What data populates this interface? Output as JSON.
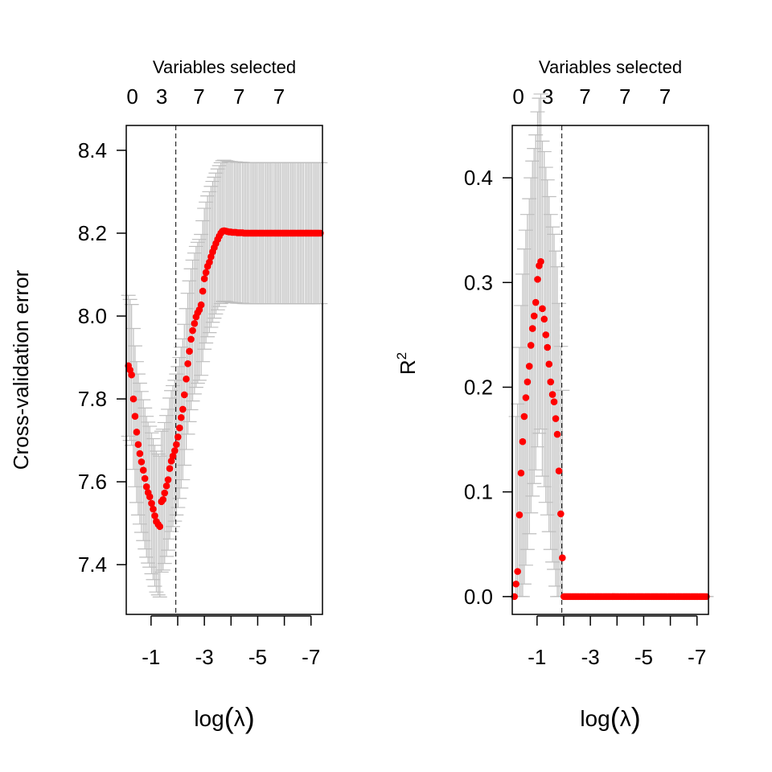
{
  "colors": {
    "points": "#ff0000",
    "errorbars": "#bebebe",
    "axis": "#000000",
    "reference_line": "#000000",
    "background": "#ffffff"
  },
  "chart_data": [
    {
      "type": "scatter",
      "xlabel_prefix": "log",
      "xlabel_symbol": "λ",
      "ylabel": "Cross-validation error",
      "top_axis_title": "Variables selected",
      "top_ticks": [
        {
          "x": -0.3,
          "label": "0"
        },
        {
          "x": -1.4,
          "label": "3"
        },
        {
          "x": -2.8,
          "label": "7"
        },
        {
          "x": -4.3,
          "label": "7"
        },
        {
          "x": -5.8,
          "label": "7"
        }
      ],
      "x_ticks": [
        {
          "value": -1,
          "label": "-1"
        },
        {
          "value": -3,
          "label": "-3"
        },
        {
          "value": -5,
          "label": "-5"
        },
        {
          "value": -7,
          "label": "-7"
        }
      ],
      "x_minor_ticks": [
        -2,
        -4,
        -6
      ],
      "y_ticks": [
        {
          "value": 7.4,
          "label": "7.4"
        },
        {
          "value": 7.6,
          "label": "7.6"
        },
        {
          "value": 7.8,
          "label": "7.8"
        },
        {
          "value": 8.0,
          "label": "8.0"
        },
        {
          "value": 8.2,
          "label": "8.2"
        },
        {
          "value": 8.4,
          "label": "8.4"
        }
      ],
      "xlim": [
        -0.07,
        -7.43
      ],
      "ylim": [
        7.28,
        8.46
      ],
      "reference_line_x": -1.93,
      "errorbar_halfwidth": 0.17,
      "points": [
        [
          -0.15,
          7.88
        ],
        [
          -0.21,
          7.87
        ],
        [
          -0.27,
          7.858
        ],
        [
          -0.34,
          7.8
        ],
        [
          -0.4,
          7.758
        ],
        [
          -0.46,
          7.72
        ],
        [
          -0.52,
          7.69
        ],
        [
          -0.58,
          7.668
        ],
        [
          -0.64,
          7.648
        ],
        [
          -0.71,
          7.628
        ],
        [
          -0.77,
          7.608
        ],
        [
          -0.83,
          7.588
        ],
        [
          -0.89,
          7.574
        ],
        [
          -0.95,
          7.564
        ],
        [
          -1.02,
          7.548
        ],
        [
          -1.08,
          7.534
        ],
        [
          -1.14,
          7.518
        ],
        [
          -1.2,
          7.504
        ],
        [
          -1.27,
          7.497
        ],
        [
          -1.33,
          7.492
        ],
        [
          -1.39,
          7.552
        ],
        [
          -1.45,
          7.557
        ],
        [
          -1.51,
          7.573
        ],
        [
          -1.58,
          7.59
        ],
        [
          -1.64,
          7.605
        ],
        [
          -1.7,
          7.632
        ],
        [
          -1.76,
          7.65
        ],
        [
          -1.82,
          7.662
        ],
        [
          -1.89,
          7.675
        ],
        [
          -1.95,
          7.69
        ],
        [
          -2.01,
          7.708
        ],
        [
          -2.07,
          7.73
        ],
        [
          -2.13,
          7.755
        ],
        [
          -2.19,
          7.775
        ],
        [
          -2.25,
          7.81
        ],
        [
          -2.32,
          7.848
        ],
        [
          -2.38,
          7.885
        ],
        [
          -2.44,
          7.915
        ],
        [
          -2.5,
          7.944
        ],
        [
          -2.56,
          7.965
        ],
        [
          -2.63,
          7.982
        ],
        [
          -2.69,
          7.998
        ],
        [
          -2.75,
          8.008
        ],
        [
          -2.81,
          8.015
        ],
        [
          -2.88,
          8.027
        ],
        [
          -2.94,
          8.06
        ],
        [
          -3.0,
          8.09
        ],
        [
          -3.06,
          8.105
        ],
        [
          -3.12,
          8.12
        ],
        [
          -3.19,
          8.13
        ],
        [
          -3.25,
          8.143
        ],
        [
          -3.31,
          8.155
        ],
        [
          -3.37,
          8.165
        ],
        [
          -3.43,
          8.175
        ],
        [
          -3.5,
          8.185
        ],
        [
          -3.56,
          8.193
        ],
        [
          -3.62,
          8.2
        ],
        [
          -3.68,
          8.205
        ],
        [
          -3.74,
          8.206
        ],
        [
          -3.81,
          8.205
        ],
        [
          -3.87,
          8.204
        ],
        [
          -3.93,
          8.203
        ],
        [
          -3.99,
          8.203
        ],
        [
          -4.05,
          8.202
        ],
        [
          -4.12,
          8.202
        ],
        [
          -4.18,
          8.202
        ],
        [
          -4.24,
          8.201
        ],
        [
          -4.3,
          8.201
        ],
        [
          -4.36,
          8.201
        ],
        [
          -4.43,
          8.201
        ],
        [
          -4.49,
          8.2
        ],
        [
          -4.55,
          8.2
        ],
        [
          -4.61,
          8.2
        ],
        [
          -4.67,
          8.2
        ],
        [
          -4.74,
          8.2
        ],
        [
          -4.8,
          8.2
        ],
        [
          -4.86,
          8.2
        ],
        [
          -4.92,
          8.2
        ],
        [
          -4.98,
          8.2
        ],
        [
          -5.05,
          8.2
        ],
        [
          -5.11,
          8.2
        ],
        [
          -5.17,
          8.2
        ],
        [
          -5.23,
          8.2
        ],
        [
          -5.3,
          8.2
        ],
        [
          -5.36,
          8.2
        ],
        [
          -5.42,
          8.2
        ],
        [
          -5.48,
          8.2
        ],
        [
          -5.54,
          8.2
        ],
        [
          -5.61,
          8.2
        ],
        [
          -5.67,
          8.2
        ],
        [
          -5.73,
          8.2
        ],
        [
          -5.79,
          8.2
        ],
        [
          -5.85,
          8.2
        ],
        [
          -5.92,
          8.2
        ],
        [
          -5.98,
          8.2
        ],
        [
          -6.04,
          8.2
        ],
        [
          -6.1,
          8.2
        ],
        [
          -6.16,
          8.2
        ],
        [
          -6.23,
          8.2
        ],
        [
          -6.29,
          8.2
        ],
        [
          -6.35,
          8.2
        ],
        [
          -6.41,
          8.2
        ],
        [
          -6.48,
          8.2
        ],
        [
          -6.54,
          8.2
        ],
        [
          -6.6,
          8.2
        ],
        [
          -6.66,
          8.2
        ],
        [
          -6.72,
          8.2
        ],
        [
          -6.79,
          8.2
        ],
        [
          -6.85,
          8.2
        ],
        [
          -6.91,
          8.2
        ],
        [
          -6.97,
          8.2
        ],
        [
          -7.03,
          8.2
        ],
        [
          -7.1,
          8.2
        ],
        [
          -7.16,
          8.2
        ],
        [
          -7.22,
          8.2
        ],
        [
          -7.28,
          8.2
        ],
        [
          -7.35,
          8.2
        ]
      ]
    },
    {
      "type": "scatter",
      "xlabel_prefix": "log",
      "xlabel_symbol": "λ",
      "ylabel_base": "R",
      "ylabel_superscript": "2",
      "top_axis_title": "Variables selected",
      "top_ticks": [
        {
          "x": -0.3,
          "label": "0"
        },
        {
          "x": -1.4,
          "label": "3"
        },
        {
          "x": -2.8,
          "label": "7"
        },
        {
          "x": -4.3,
          "label": "7"
        },
        {
          "x": -5.8,
          "label": "7"
        }
      ],
      "x_ticks": [
        {
          "value": -1,
          "label": "-1"
        },
        {
          "value": -3,
          "label": "-3"
        },
        {
          "value": -5,
          "label": "-5"
        },
        {
          "value": -7,
          "label": "-7"
        }
      ],
      "x_minor_ticks": [
        -2,
        -4,
        -6
      ],
      "y_ticks": [
        {
          "value": 0.0,
          "label": "0.0"
        },
        {
          "value": 0.1,
          "label": "0.1"
        },
        {
          "value": 0.2,
          "label": "0.2"
        },
        {
          "value": 0.3,
          "label": "0.3"
        },
        {
          "value": 0.4,
          "label": "0.4"
        }
      ],
      "xlim": [
        -0.07,
        -7.43
      ],
      "ylim": [
        -0.017,
        0.45
      ],
      "reference_line_x": -1.93,
      "errorbar_halfwidth": 0.16,
      "points": [
        [
          -0.15,
          0.0
        ],
        [
          -0.21,
          0.012
        ],
        [
          -0.27,
          0.024
        ],
        [
          -0.34,
          0.078
        ],
        [
          -0.4,
          0.118
        ],
        [
          -0.46,
          0.148
        ],
        [
          -0.52,
          0.172
        ],
        [
          -0.58,
          0.19
        ],
        [
          -0.64,
          0.205
        ],
        [
          -0.71,
          0.22
        ],
        [
          -0.77,
          0.24
        ],
        [
          -0.83,
          0.256
        ],
        [
          -0.89,
          0.268
        ],
        [
          -0.95,
          0.281
        ],
        [
          -1.02,
          0.303
        ],
        [
          -1.08,
          0.316
        ],
        [
          -1.14,
          0.32
        ],
        [
          -1.2,
          0.275
        ],
        [
          -1.27,
          0.265
        ],
        [
          -1.33,
          0.25
        ],
        [
          -1.39,
          0.238
        ],
        [
          -1.45,
          0.222
        ],
        [
          -1.51,
          0.205
        ],
        [
          -1.58,
          0.193
        ],
        [
          -1.64,
          0.186
        ],
        [
          -1.7,
          0.17
        ],
        [
          -1.76,
          0.155
        ],
        [
          -1.82,
          0.12
        ],
        [
          -1.89,
          0.079
        ],
        [
          -1.95,
          0.037
        ],
        [
          -2.01,
          0.0
        ],
        [
          -2.07,
          0.0
        ],
        [
          -2.13,
          0.0
        ],
        [
          -2.19,
          0.0
        ],
        [
          -2.25,
          0.0
        ],
        [
          -2.32,
          0.0
        ],
        [
          -2.38,
          0.0
        ],
        [
          -2.44,
          0.0
        ],
        [
          -2.5,
          0.0
        ],
        [
          -2.56,
          0.0
        ],
        [
          -2.63,
          0.0
        ],
        [
          -2.69,
          0.0
        ],
        [
          -2.75,
          0.0
        ],
        [
          -2.81,
          0.0
        ],
        [
          -2.88,
          0.0
        ],
        [
          -2.94,
          0.0
        ],
        [
          -3.0,
          0.0
        ],
        [
          -3.06,
          0.0
        ],
        [
          -3.12,
          0.0
        ],
        [
          -3.19,
          0.0
        ],
        [
          -3.25,
          0.0
        ],
        [
          -3.31,
          0.0
        ],
        [
          -3.37,
          0.0
        ],
        [
          -3.43,
          0.0
        ],
        [
          -3.5,
          0.0
        ],
        [
          -3.56,
          0.0
        ],
        [
          -3.62,
          0.0
        ],
        [
          -3.68,
          0.0
        ],
        [
          -3.74,
          0.0
        ],
        [
          -3.81,
          0.0
        ],
        [
          -3.87,
          0.0
        ],
        [
          -3.93,
          0.0
        ],
        [
          -3.99,
          0.0
        ],
        [
          -4.05,
          0.0
        ],
        [
          -4.12,
          0.0
        ],
        [
          -4.18,
          0.0
        ],
        [
          -4.24,
          0.0
        ],
        [
          -4.3,
          0.0
        ],
        [
          -4.36,
          0.0
        ],
        [
          -4.43,
          0.0
        ],
        [
          -4.49,
          0.0
        ],
        [
          -4.55,
          0.0
        ],
        [
          -4.61,
          0.0
        ],
        [
          -4.67,
          0.0
        ],
        [
          -4.74,
          0.0
        ],
        [
          -4.8,
          0.0
        ],
        [
          -4.86,
          0.0
        ],
        [
          -4.92,
          0.0
        ],
        [
          -4.98,
          0.0
        ],
        [
          -5.05,
          0.0
        ],
        [
          -5.11,
          0.0
        ],
        [
          -5.17,
          0.0
        ],
        [
          -5.23,
          0.0
        ],
        [
          -5.3,
          0.0
        ],
        [
          -5.36,
          0.0
        ],
        [
          -5.42,
          0.0
        ],
        [
          -5.48,
          0.0
        ],
        [
          -5.54,
          0.0
        ],
        [
          -5.61,
          0.0
        ],
        [
          -5.67,
          0.0
        ],
        [
          -5.73,
          0.0
        ],
        [
          -5.79,
          0.0
        ],
        [
          -5.85,
          0.0
        ],
        [
          -5.92,
          0.0
        ],
        [
          -5.98,
          0.0
        ],
        [
          -6.04,
          0.0
        ],
        [
          -6.1,
          0.0
        ],
        [
          -6.16,
          0.0
        ],
        [
          -6.23,
          0.0
        ],
        [
          -6.29,
          0.0
        ],
        [
          -6.35,
          0.0
        ],
        [
          -6.41,
          0.0
        ],
        [
          -6.48,
          0.0
        ],
        [
          -6.54,
          0.0
        ],
        [
          -6.6,
          0.0
        ],
        [
          -6.66,
          0.0
        ],
        [
          -6.72,
          0.0
        ],
        [
          -6.79,
          0.0
        ],
        [
          -6.85,
          0.0
        ],
        [
          -6.91,
          0.0
        ],
        [
          -6.97,
          0.0
        ],
        [
          -7.03,
          0.0
        ],
        [
          -7.1,
          0.0
        ],
        [
          -7.16,
          0.0
        ],
        [
          -7.22,
          0.0
        ],
        [
          -7.28,
          0.0
        ],
        [
          -7.35,
          0.0
        ]
      ]
    }
  ]
}
